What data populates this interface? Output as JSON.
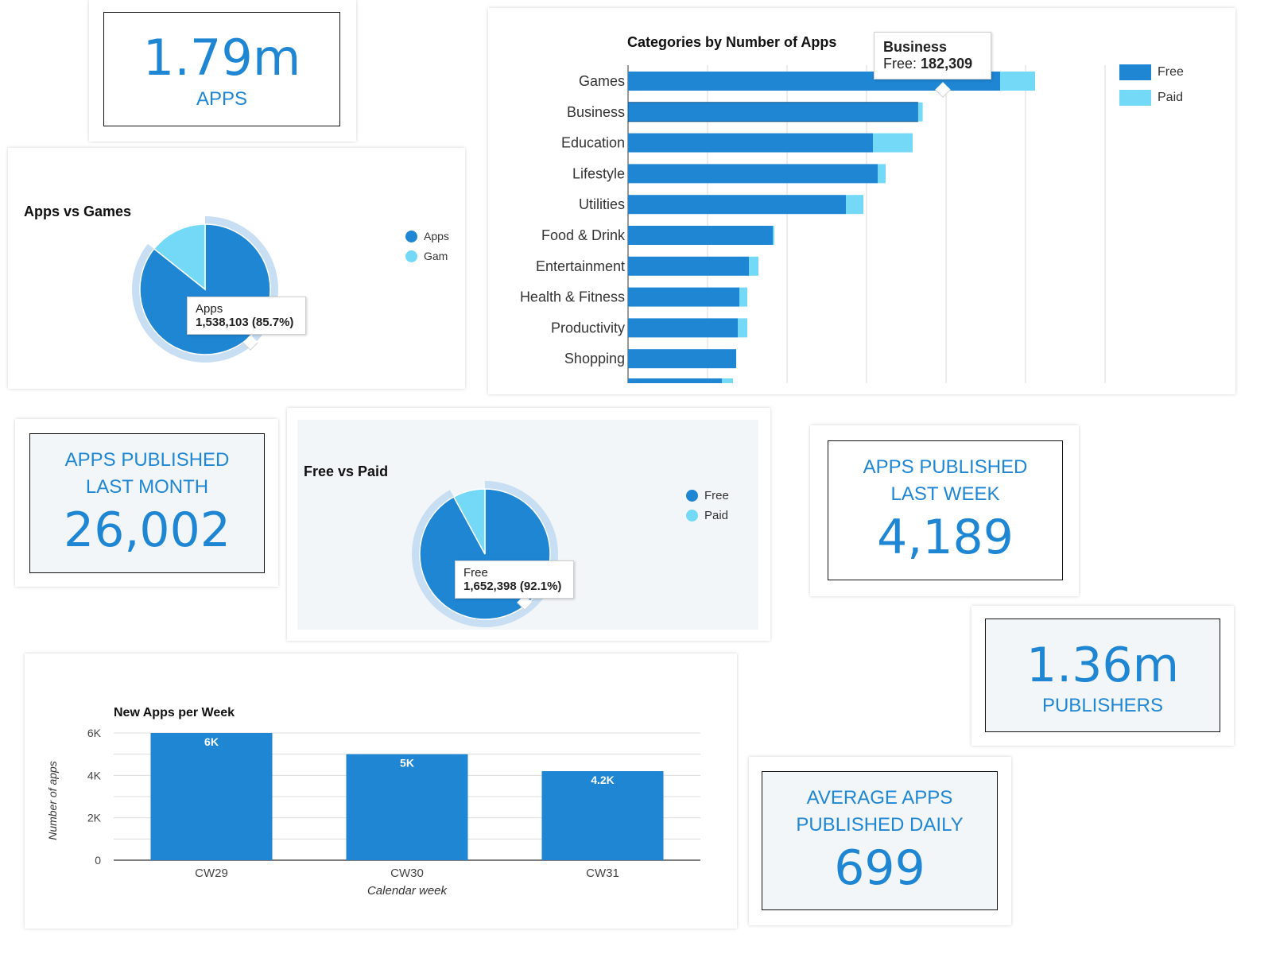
{
  "colors": {
    "dark_blue": "#1f86d4",
    "light_blue": "#74d9f7",
    "ring": "#c7def3",
    "accent_text": "#1f86d4"
  },
  "kpis": {
    "apps": {
      "value": "1.79m",
      "label": "APPS"
    },
    "last_month": {
      "label_line1": "APPS PUBLISHED",
      "label_line2": "LAST MONTH",
      "value": "26,002"
    },
    "last_week": {
      "label_line1": "APPS PUBLISHED",
      "label_line2": "LAST WEEK",
      "value": "4,189"
    },
    "publishers": {
      "value": "1.36m",
      "label": "PUBLISHERS"
    },
    "avg_daily": {
      "label_line1": "AVERAGE APPS",
      "label_line2": "PUBLISHED DAILY",
      "value": "699"
    }
  },
  "apps_vs_games": {
    "legend": [
      "Apps",
      "Gam"
    ],
    "tooltip": {
      "name": "Apps",
      "value": "1,538,103 (85.7%)"
    }
  },
  "free_vs_paid": {
    "legend": [
      "Free",
      "Paid"
    ],
    "tooltip": {
      "name": "Free",
      "value": "1,652,398 (92.1%)"
    }
  },
  "categories_tooltip": {
    "name": "Business",
    "label": "Free:",
    "value": "182,309"
  },
  "new_apps_extra": {
    "data_labels": [
      "6K",
      "5K",
      "4.2K"
    ]
  },
  "chart_data": [
    {
      "type": "pie",
      "title": "Apps vs Games",
      "labels": [
        "Apps",
        "Games"
      ],
      "values": [
        1538103,
        256817
      ],
      "percentages": [
        85.7,
        14.3
      ],
      "legend_position": "right"
    },
    {
      "type": "bar",
      "orientation": "horizontal",
      "stacked": true,
      "title": "Categories by Number of Apps",
      "categories": [
        "Games",
        "Business",
        "Education",
        "Lifestyle",
        "Utilities",
        "Food & Drink",
        "Entertainment",
        "Health & Fitness",
        "Productivity",
        "Shopping"
      ],
      "series": [
        {
          "name": "Free",
          "values": [
            234000,
            182309,
            154000,
            157000,
            137000,
            91000,
            76000,
            70000,
            69000,
            68000
          ]
        },
        {
          "name": "Paid",
          "values": [
            22000,
            3000,
            25000,
            5000,
            11000,
            1000,
            6000,
            5000,
            6000,
            0
          ]
        }
      ],
      "xlim": [
        0,
        300000
      ],
      "grid": true,
      "legend_position": "right"
    },
    {
      "type": "pie",
      "title": "Free vs Paid",
      "labels": [
        "Free",
        "Paid"
      ],
      "values": [
        1652398,
        142522
      ],
      "percentages": [
        92.1,
        7.9
      ],
      "legend_position": "right"
    },
    {
      "type": "bar",
      "title": "New Apps per Week",
      "categories": [
        "CW29",
        "CW30",
        "CW31"
      ],
      "values": [
        6000,
        5000,
        4200
      ],
      "xlabel": "Calendar week",
      "ylabel": "Number of apps",
      "ylim": [
        0,
        6000
      ],
      "yticks": [
        "0",
        "2K",
        "4K",
        "6K"
      ],
      "grid": true
    }
  ]
}
